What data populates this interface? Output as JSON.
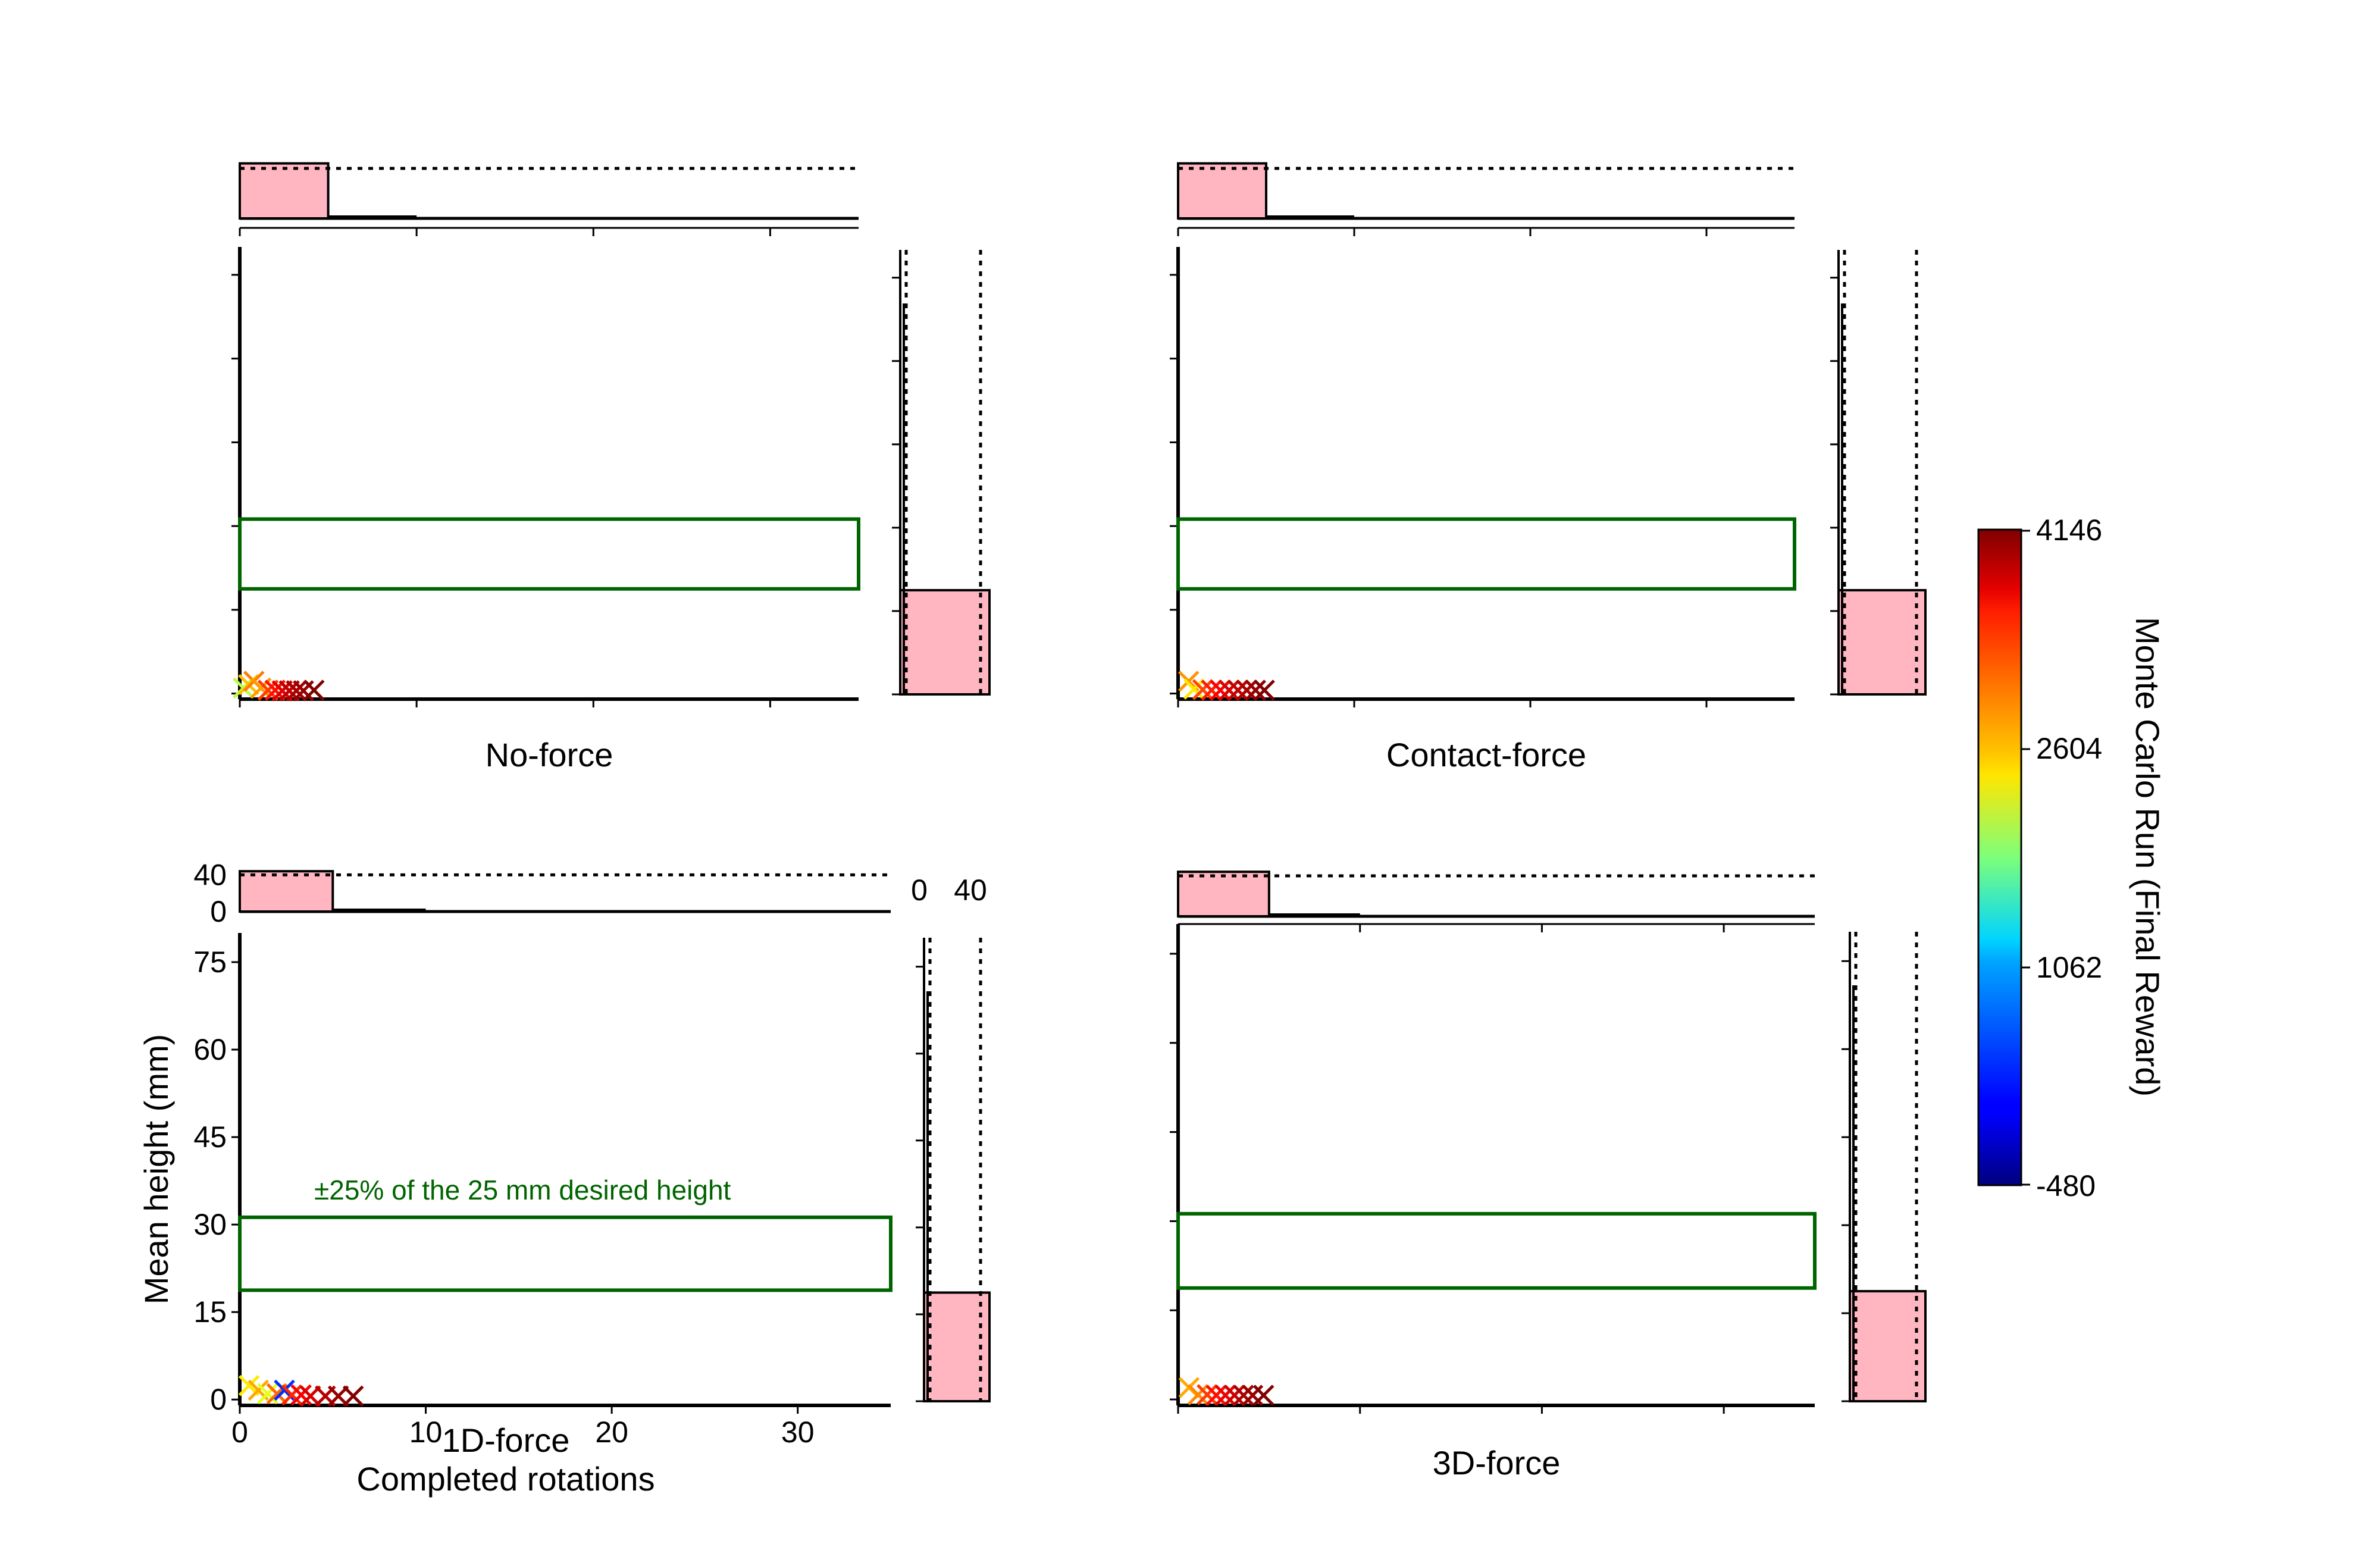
{
  "chart_data": [
    {
      "type": "scatter",
      "panel": "No-force",
      "caption": "No-force",
      "xlabel": "",
      "ylabel": "",
      "xlim": [
        0,
        35
      ],
      "ylim": [
        -1,
        80
      ],
      "xticks": [
        0,
        10,
        20,
        30
      ],
      "yticks": [
        0,
        15,
        30,
        45,
        60,
        75
      ],
      "target_band": {
        "y0": 18.75,
        "y1": 31.25,
        "color": "#006400",
        "label": ""
      },
      "points": [
        {
          "x": 0.2,
          "y": 1.0,
          "run": 2100
        },
        {
          "x": 0.5,
          "y": 1.6,
          "run": 2700
        },
        {
          "x": 0.8,
          "y": 2.2,
          "run": 3000
        },
        {
          "x": 1.2,
          "y": 1.0,
          "run": 2850
        },
        {
          "x": 1.6,
          "y": 0.6,
          "run": 3300
        },
        {
          "x": 2.0,
          "y": 0.6,
          "run": 3500
        },
        {
          "x": 2.4,
          "y": 0.5,
          "run": 3700
        },
        {
          "x": 2.8,
          "y": 0.5,
          "run": 3850
        },
        {
          "x": 3.2,
          "y": 0.5,
          "run": 3950
        },
        {
          "x": 3.6,
          "y": 0.5,
          "run": 4050
        },
        {
          "x": 4.2,
          "y": 0.6,
          "run": 4146
        }
      ],
      "top_hist": {
        "counts": [
          44,
          0.5
        ],
        "bins": [
          0,
          5,
          10
        ],
        "ref": 40
      },
      "right_hist": {
        "counts": [
          18,
          0
        ],
        "bins": [
          0,
          18.75,
          80
        ],
        "ref": 40
      }
    },
    {
      "type": "scatter",
      "panel": "Contact-force",
      "caption": "Contact-force",
      "xlabel": "",
      "ylabel": "",
      "xlim": [
        0,
        35
      ],
      "ylim": [
        -1,
        80
      ],
      "xticks": [
        0,
        10,
        20,
        30
      ],
      "yticks": [
        0,
        15,
        30,
        45,
        60,
        75
      ],
      "target_band": {
        "y0": 18.75,
        "y1": 31.25,
        "color": "#006400",
        "label": ""
      },
      "points": [
        {
          "x": 0.6,
          "y": 2.2,
          "run": 2900
        },
        {
          "x": 0.9,
          "y": 0.8,
          "run": 2500
        },
        {
          "x": 1.4,
          "y": 0.7,
          "run": 3250
        },
        {
          "x": 1.9,
          "y": 0.6,
          "run": 3450
        },
        {
          "x": 2.4,
          "y": 0.6,
          "run": 3600
        },
        {
          "x": 2.9,
          "y": 0.6,
          "run": 3750
        },
        {
          "x": 3.4,
          "y": 0.6,
          "run": 3850
        },
        {
          "x": 3.9,
          "y": 0.6,
          "run": 3950
        },
        {
          "x": 4.4,
          "y": 0.6,
          "run": 4050
        },
        {
          "x": 4.9,
          "y": 0.6,
          "run": 4146
        }
      ],
      "top_hist": {
        "counts": [
          44,
          0.5
        ],
        "bins": [
          0,
          5,
          10
        ],
        "ref": 40
      },
      "right_hist": {
        "counts": [
          18,
          0
        ],
        "bins": [
          0,
          18.75,
          80
        ],
        "ref": 40
      }
    },
    {
      "type": "scatter",
      "panel": "1D-force",
      "caption": "1D-force",
      "xlabel": "Completed rotations",
      "ylabel": "Mean height (mm)",
      "xlim": [
        0,
        35
      ],
      "ylim": [
        -1,
        80
      ],
      "xticks": [
        0,
        10,
        20,
        30
      ],
      "yticks": [
        0,
        15,
        30,
        45,
        60,
        75
      ],
      "target_band": {
        "y0": 18.75,
        "y1": 31.25,
        "color": "#006400",
        "label": "±25% of the 25 mm desired height"
      },
      "points": [
        {
          "x": 0.5,
          "y": 2.4,
          "run": 2500
        },
        {
          "x": 1.0,
          "y": 1.6,
          "run": 2800
        },
        {
          "x": 1.5,
          "y": 1.0,
          "run": 2300
        },
        {
          "x": 2.0,
          "y": 1.0,
          "run": 3100
        },
        {
          "x": 2.4,
          "y": 1.6,
          "run": 300
        },
        {
          "x": 2.8,
          "y": 0.8,
          "run": 3400
        },
        {
          "x": 3.3,
          "y": 0.8,
          "run": 3600
        },
        {
          "x": 3.8,
          "y": 0.6,
          "run": 3750
        },
        {
          "x": 4.6,
          "y": 0.6,
          "run": 3900
        },
        {
          "x": 5.3,
          "y": 0.6,
          "run": 4050
        },
        {
          "x": 6.1,
          "y": 0.6,
          "run": 4146
        }
      ],
      "top_hist": {
        "counts": [
          44,
          1
        ],
        "bins": [
          0,
          5,
          10
        ],
        "ref": 40
      },
      "right_hist": {
        "counts": [
          18,
          0
        ],
        "bins": [
          0,
          18.75,
          80
        ],
        "ref": 40
      },
      "hist_ticks": {
        "count_ticks": [
          0,
          40
        ]
      }
    },
    {
      "type": "scatter",
      "panel": "3D-force",
      "caption": "3D-force",
      "xlabel": "",
      "ylabel": "",
      "xlim": [
        0,
        35
      ],
      "ylim": [
        -1,
        80
      ],
      "xticks": [
        0,
        10,
        20,
        30
      ],
      "yticks": [
        0,
        15,
        30,
        45,
        60,
        75
      ],
      "target_band": {
        "y0": 18.75,
        "y1": 31.25,
        "color": "#006400",
        "label": ""
      },
      "points": [
        {
          "x": 0.6,
          "y": 2.0,
          "run": 2800
        },
        {
          "x": 1.1,
          "y": 0.8,
          "run": 2950
        },
        {
          "x": 1.6,
          "y": 0.8,
          "run": 3300
        },
        {
          "x": 2.1,
          "y": 0.7,
          "run": 3500
        },
        {
          "x": 2.6,
          "y": 0.7,
          "run": 3650
        },
        {
          "x": 3.1,
          "y": 0.7,
          "run": 3800
        },
        {
          "x": 3.6,
          "y": 0.7,
          "run": 3950
        },
        {
          "x": 4.1,
          "y": 0.7,
          "run": 4050
        },
        {
          "x": 4.7,
          "y": 0.7,
          "run": 4146
        }
      ],
      "top_hist": {
        "counts": [
          44,
          0.5
        ],
        "bins": [
          0,
          5,
          10
        ],
        "ref": 40
      },
      "right_hist": {
        "counts": [
          18,
          0
        ],
        "bins": [
          0,
          18.75,
          80
        ],
        "ref": 40
      }
    }
  ],
  "colorbar": {
    "label": "Monte Carlo Run (Final Reward)",
    "colormap": "jet",
    "min": -480,
    "max": 4146,
    "ticks": [
      4146,
      2604,
      1062,
      -480
    ]
  },
  "colors": {
    "band": "#006400",
    "hist_fill": "#ffb6c1",
    "axis": "#000000"
  }
}
